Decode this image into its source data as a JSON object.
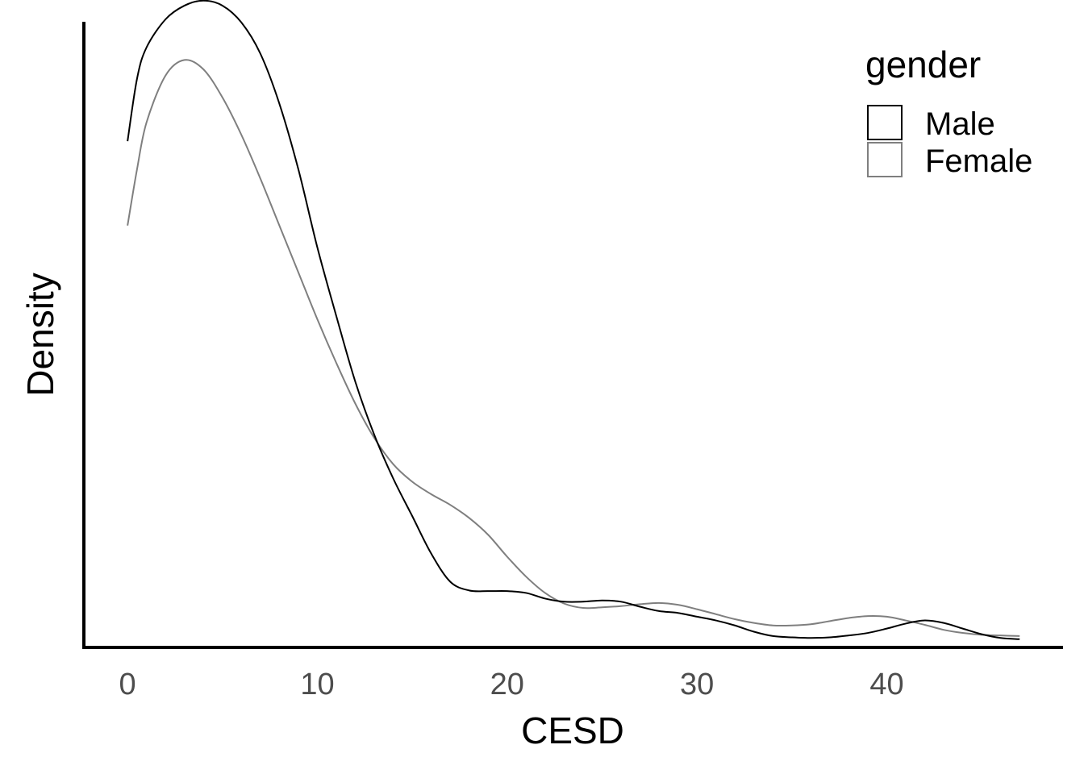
{
  "chart_data": {
    "type": "line",
    "xlabel": "CESD",
    "ylabel": "Density",
    "xlim": [
      -2.3,
      49.2
    ],
    "ylim": [
      0,
      1.0
    ],
    "x_ticks": [
      0,
      10,
      20,
      30,
      40
    ],
    "y_ticks_shown": false,
    "grid": false,
    "legend": {
      "title": "gender",
      "position": "top-right"
    },
    "series": [
      {
        "name": "Male",
        "color": "#000000",
        "x": [
          0,
          0.5,
          1,
          2,
          3,
          4,
          5,
          6,
          7,
          8,
          9,
          10,
          11,
          12,
          13,
          14,
          15,
          16,
          17,
          18,
          19,
          20,
          21,
          22,
          23,
          24,
          25,
          26,
          27,
          28,
          29,
          30,
          31,
          32,
          33,
          34,
          35,
          36,
          37,
          38,
          39,
          40,
          41,
          42,
          43,
          44,
          45,
          46,
          47
        ],
        "y": [
          0.765,
          0.865,
          0.915,
          0.96,
          0.982,
          0.99,
          0.982,
          0.955,
          0.905,
          0.825,
          0.72,
          0.595,
          0.485,
          0.38,
          0.295,
          0.225,
          0.165,
          0.105,
          0.06,
          0.046,
          0.045,
          0.045,
          0.042,
          0.033,
          0.028,
          0.028,
          0.03,
          0.028,
          0.02,
          0.013,
          0.01,
          0.004,
          -0.002,
          -0.01,
          -0.02,
          -0.027,
          -0.029,
          -0.03,
          -0.029,
          -0.026,
          -0.022,
          -0.015,
          -0.007,
          -0.002,
          -0.006,
          -0.015,
          -0.024,
          -0.03,
          -0.032
        ]
      },
      {
        "name": "Female",
        "color": "#7f7f7f",
        "x": [
          0,
          0.5,
          1,
          2,
          3,
          4,
          5,
          6,
          7,
          8,
          9,
          10,
          11,
          12,
          13,
          14,
          15,
          16,
          17,
          18,
          19,
          20,
          21,
          22,
          23,
          24,
          25,
          26,
          27,
          28,
          29,
          30,
          31,
          32,
          33,
          34,
          35,
          36,
          37,
          38,
          39,
          40,
          41,
          42,
          43,
          44,
          45,
          46,
          47
        ],
        "y": [
          0.63,
          0.72,
          0.795,
          0.87,
          0.895,
          0.88,
          0.835,
          0.775,
          0.705,
          0.63,
          0.555,
          0.48,
          0.41,
          0.345,
          0.29,
          0.248,
          0.22,
          0.2,
          0.183,
          0.162,
          0.135,
          0.1,
          0.068,
          0.042,
          0.025,
          0.018,
          0.019,
          0.021,
          0.024,
          0.026,
          0.023,
          0.016,
          0.008,
          0.0,
          -0.006,
          -0.01,
          -0.01,
          -0.008,
          -0.003,
          0.002,
          0.005,
          0.004,
          -0.002,
          -0.009,
          -0.017,
          -0.022,
          -0.025,
          -0.026,
          -0.027
        ]
      }
    ]
  }
}
